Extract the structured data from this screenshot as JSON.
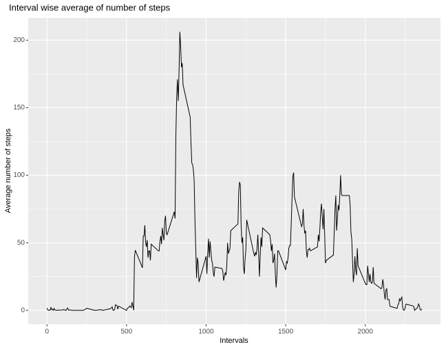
{
  "chart_data": {
    "type": "line",
    "title": "Interval wise average of number of steps",
    "x_label": "Intervals",
    "y_label": "Average number of steps",
    "x": [
      0,
      5,
      10,
      15,
      20,
      25,
      30,
      35,
      40,
      45,
      50,
      55,
      100,
      105,
      110,
      115,
      120,
      125,
      130,
      135,
      140,
      145,
      150,
      155,
      200,
      230,
      250,
      300,
      320,
      335,
      350,
      400,
      410,
      415,
      425,
      430,
      440,
      445,
      450,
      500,
      505,
      515,
      520,
      530,
      535,
      545,
      550,
      555,
      600,
      605,
      610,
      615,
      620,
      625,
      630,
      635,
      640,
      645,
      650,
      655,
      700,
      705,
      710,
      715,
      720,
      725,
      730,
      735,
      740,
      745,
      750,
      755,
      800,
      805,
      810,
      815,
      820,
      825,
      830,
      835,
      840,
      845,
      850,
      855,
      900,
      905,
      910,
      915,
      920,
      925,
      930,
      935,
      940,
      945,
      950,
      955,
      1000,
      1005,
      1010,
      1015,
      1020,
      1025,
      1030,
      1035,
      1040,
      1045,
      1050,
      1055,
      1100,
      1105,
      1110,
      1115,
      1120,
      1125,
      1130,
      1135,
      1140,
      1145,
      1150,
      1155,
      1200,
      1205,
      1210,
      1215,
      1220,
      1225,
      1230,
      1235,
      1240,
      1245,
      1250,
      1255,
      1300,
      1305,
      1310,
      1315,
      1320,
      1325,
      1330,
      1335,
      1340,
      1345,
      1350,
      1355,
      1400,
      1405,
      1410,
      1415,
      1420,
      1425,
      1430,
      1435,
      1440,
      1445,
      1450,
      1455,
      1500,
      1505,
      1510,
      1515,
      1520,
      1525,
      1530,
      1535,
      1540,
      1545,
      1550,
      1555,
      1600,
      1605,
      1610,
      1615,
      1620,
      1625,
      1630,
      1635,
      1640,
      1645,
      1650,
      1655,
      1700,
      1705,
      1710,
      1715,
      1720,
      1725,
      1730,
      1735,
      1740,
      1745,
      1750,
      1755,
      1800,
      1805,
      1810,
      1815,
      1820,
      1825,
      1830,
      1835,
      1840,
      1845,
      1850,
      1855,
      1900,
      1905,
      1910,
      1915,
      1920,
      1925,
      1930,
      1935,
      1940,
      1945,
      1950,
      1955,
      2000,
      2005,
      2010,
      2015,
      2020,
      2025,
      2030,
      2035,
      2040,
      2045,
      2050,
      2055,
      2100,
      2105,
      2110,
      2115,
      2120,
      2125,
      2130,
      2135,
      2140,
      2145,
      2150,
      2155,
      2200,
      2205,
      2210,
      2215,
      2220,
      2225,
      2230,
      2235,
      2240,
      2245,
      2250,
      2255,
      2300,
      2305,
      2310,
      2315,
      2320,
      2325,
      2330,
      2335,
      2340,
      2345,
      2350,
      2355
    ],
    "values": [
      1.7,
      0.3,
      0.1,
      0.2,
      0.1,
      2.1,
      0.5,
      0.9,
      0,
      1.5,
      0.3,
      0.1,
      0.3,
      0.7,
      0.2,
      0.3,
      0,
      1.1,
      1.8,
      0.2,
      0.2,
      0.4,
      0.3,
      0,
      0,
      0,
      1.5,
      0,
      0.2,
      0.6,
      0,
      1.2,
      2.6,
      0,
      0.4,
      4.1,
      3.5,
      0.8,
      3.1,
      0,
      1.6,
      2.2,
      3.3,
      2.1,
      6.1,
      0.1,
      39.5,
      44.5,
      31.5,
      55,
      55,
      63,
      50,
      47,
      52,
      39,
      44,
      44,
      37,
      49,
      44,
      44,
      51,
      55,
      49,
      61,
      56,
      52,
      66,
      70,
      57,
      56,
      73,
      68,
      129,
      158,
      171,
      155,
      177,
      206.17,
      196,
      180,
      183,
      167,
      143,
      124,
      109,
      108,
      104,
      96,
      66,
      45,
      24,
      39,
      35,
      21,
      40,
      27,
      42,
      53,
      39,
      51,
      44,
      37,
      35,
      28,
      25,
      32,
      31,
      29,
      22,
      25,
      28,
      26,
      33,
      50,
      42,
      44,
      46,
      59,
      64,
      88,
      95,
      93,
      63,
      50,
      54,
      32,
      27,
      38,
      45,
      67,
      42,
      40,
      43,
      41,
      46,
      56,
      43,
      25,
      40,
      54,
      47,
      61,
      56,
      52,
      44,
      49,
      35,
      37,
      42,
      27,
      17,
      26,
      44,
      44,
      30,
      36,
      35,
      39,
      46,
      48,
      48,
      65,
      83,
      99,
      102,
      84,
      62,
      64,
      75,
      63,
      57,
      59,
      44,
      39,
      45,
      45,
      46,
      44,
      47,
      56,
      51,
      61,
      73,
      79,
      69,
      60,
      75,
      57,
      35,
      37,
      41,
      58,
      75,
      85,
      59,
      68,
      78,
      74,
      85,
      100,
      86,
      85,
      85,
      78,
      58,
      53,
      37,
      21,
      27,
      40,
      30,
      26,
      46,
      33,
      20,
      19,
      19,
      33,
      27,
      21,
      27,
      21,
      20,
      21,
      32,
      20,
      16,
      17,
      23,
      19,
      12,
      8,
      15,
      16,
      8,
      8,
      8,
      3,
      1.5,
      4,
      4.8,
      8.5,
      7.1,
      8.7,
      9.8,
      2.2,
      0.3,
      0.1,
      1.6,
      4.6,
      3.3,
      2.8,
      0,
      0.8,
      1,
      1.6,
      2.6,
      4.7,
      3.3,
      0.6,
      0.2,
      1.1
    ],
    "color": "#000000",
    "xlim": [
      -117.75,
      2472.75
    ],
    "xticks": [
      0,
      500,
      1000,
      1500,
      2000
    ],
    "ylim": [
      -10.31,
      216.48
    ],
    "yticks": [
      0,
      50,
      100,
      150,
      200
    ],
    "grid": true
  }
}
